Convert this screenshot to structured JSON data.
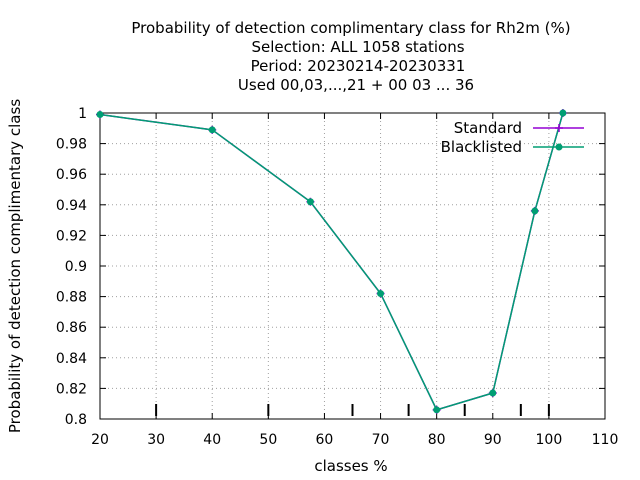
{
  "chart_data": {
    "type": "line",
    "title_lines": [
      "Probability of detection complimentary class  for Rh2m (%)",
      "Selection: ALL   1058 stations",
      "Period: 20230214-20230331",
      "Used  00,03,...,21  + 00 03 ... 36"
    ],
    "xlabel": "classes %",
    "ylabel": "Probability of detection complimentary class",
    "xlim": [
      20,
      110
    ],
    "ylim": [
      0.8,
      1.0
    ],
    "x_ticks": [
      20,
      30,
      40,
      50,
      60,
      70,
      80,
      90,
      100,
      110
    ],
    "y_ticks": [
      0.8,
      0.82,
      0.84,
      0.86,
      0.88,
      0.9,
      0.92,
      0.94,
      0.96,
      0.98,
      1.0
    ],
    "x_tick_labels": [
      "20",
      "30",
      "40",
      "50",
      "60",
      "70",
      "80",
      "90",
      "100",
      "110"
    ],
    "y_tick_labels": [
      "0.8",
      "0.82",
      "0.84",
      "0.86",
      "0.88",
      "0.9",
      "0.92",
      "0.94",
      "0.96",
      "0.98",
      "1"
    ],
    "bottom_marks_x": [
      30,
      50,
      65,
      75,
      85,
      95,
      100
    ],
    "grid": true,
    "legend_position": "top-right",
    "series": [
      {
        "name": "Standard",
        "color": "#9400d3",
        "marker": "plus",
        "x": [
          20,
          40,
          57.5,
          70,
          80,
          90,
          97.5,
          102.5
        ],
        "y": [
          0.999,
          0.989,
          0.942,
          0.882,
          0.806,
          0.817,
          0.936,
          1.0
        ]
      },
      {
        "name": "Blacklisted",
        "color": "#009e73",
        "marker": "filled-circle",
        "x": [
          20,
          40,
          57.5,
          70,
          80,
          90,
          97.5,
          102.5
        ],
        "y": [
          0.999,
          0.989,
          0.942,
          0.882,
          0.806,
          0.817,
          0.936,
          1.0
        ]
      }
    ]
  }
}
